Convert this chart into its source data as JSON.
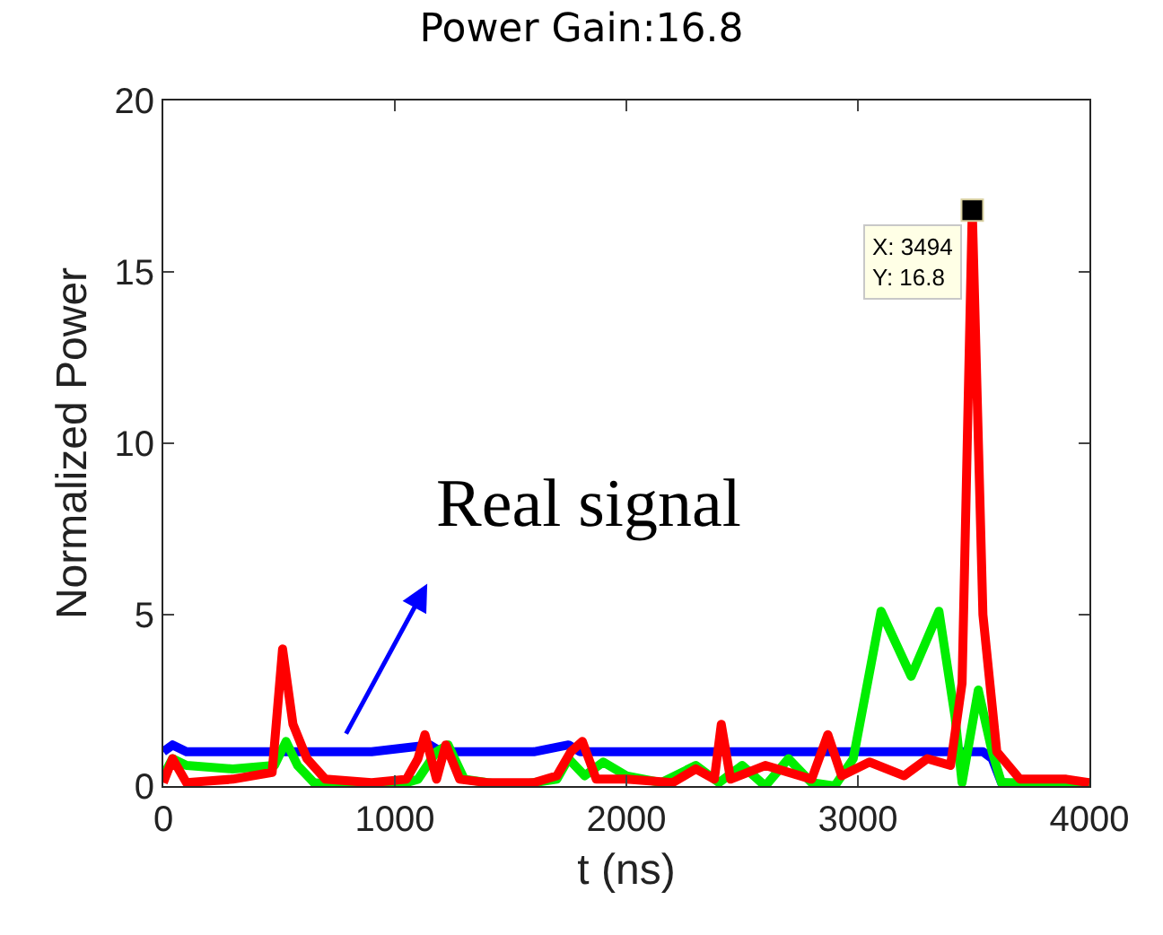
{
  "chart_data": {
    "type": "line",
    "title": "Power Gain:16.8",
    "xlabel": "t (ns)",
    "ylabel": "Normalized Power",
    "xlim": [
      0,
      4000
    ],
    "xticks": [
      0,
      1000,
      2000,
      3000,
      4000
    ],
    "ylim": [
      0,
      20
    ],
    "yticks": [
      0,
      5,
      10,
      15,
      20
    ],
    "grid": false,
    "marker": "none",
    "line_style": "solid",
    "series": [
      {
        "color": "#0000ff",
        "x": [
          0,
          40,
          100,
          300,
          500,
          700,
          900,
          1150,
          1200,
          1400,
          1600,
          1750,
          1800,
          2000,
          2200,
          2400,
          2600,
          2800,
          3000,
          3200,
          3400,
          3540,
          3580,
          3620,
          3800,
          4000
        ],
        "values": [
          1.0,
          1.2,
          1.0,
          1.0,
          1.0,
          1.0,
          1.0,
          1.2,
          1.0,
          1.0,
          1.0,
          1.2,
          1.0,
          1.0,
          1.0,
          1.0,
          1.0,
          1.0,
          1.0,
          1.0,
          1.0,
          1.0,
          0.8,
          0.1,
          0.0,
          0.0
        ]
      },
      {
        "color": "#00ee00",
        "x": [
          0,
          40,
          100,
          300,
          480,
          530,
          580,
          650,
          800,
          1000,
          1100,
          1180,
          1230,
          1300,
          1500,
          1700,
          1750,
          1820,
          1900,
          2000,
          2150,
          2300,
          2400,
          2500,
          2600,
          2700,
          2800,
          2900,
          2980,
          3100,
          3230,
          3350,
          3420,
          3450,
          3520,
          3580,
          3620,
          3800,
          4000
        ],
        "values": [
          0.3,
          0.8,
          0.6,
          0.5,
          0.6,
          1.3,
          0.6,
          0.1,
          0.0,
          0.0,
          0.2,
          1.0,
          1.2,
          0.2,
          0.0,
          0.2,
          0.8,
          0.3,
          0.7,
          0.3,
          0.1,
          0.6,
          0.1,
          0.6,
          0.0,
          0.8,
          0.1,
          0.0,
          0.8,
          5.1,
          3.2,
          5.1,
          2.0,
          0.1,
          2.8,
          1.0,
          0.1,
          0.1,
          0.1
        ]
      },
      {
        "color": "#ff0000",
        "x": [
          0,
          40,
          100,
          300,
          470,
          515,
          560,
          620,
          700,
          900,
          1050,
          1100,
          1130,
          1180,
          1220,
          1280,
          1400,
          1600,
          1700,
          1760,
          1810,
          1870,
          2000,
          2200,
          2300,
          2380,
          2410,
          2450,
          2600,
          2800,
          2870,
          2930,
          3050,
          3200,
          3300,
          3400,
          3450,
          3494,
          3540,
          3600,
          3700,
          3900,
          4000
        ],
        "values": [
          0.1,
          0.8,
          0.1,
          0.2,
          0.4,
          4.0,
          1.8,
          0.8,
          0.2,
          0.1,
          0.2,
          0.8,
          1.5,
          0.2,
          1.2,
          0.2,
          0.1,
          0.1,
          0.3,
          1.0,
          1.3,
          0.2,
          0.2,
          0.1,
          0.5,
          0.2,
          1.8,
          0.2,
          0.6,
          0.2,
          1.5,
          0.3,
          0.7,
          0.3,
          0.8,
          0.6,
          3.0,
          16.8,
          5.0,
          1.0,
          0.2,
          0.2,
          0.1
        ]
      }
    ],
    "annotations": [
      "Real signal",
      {
        "text": "X: 3494\nY: 16.8",
        "x": 3494,
        "y": 16.8
      }
    ]
  }
}
